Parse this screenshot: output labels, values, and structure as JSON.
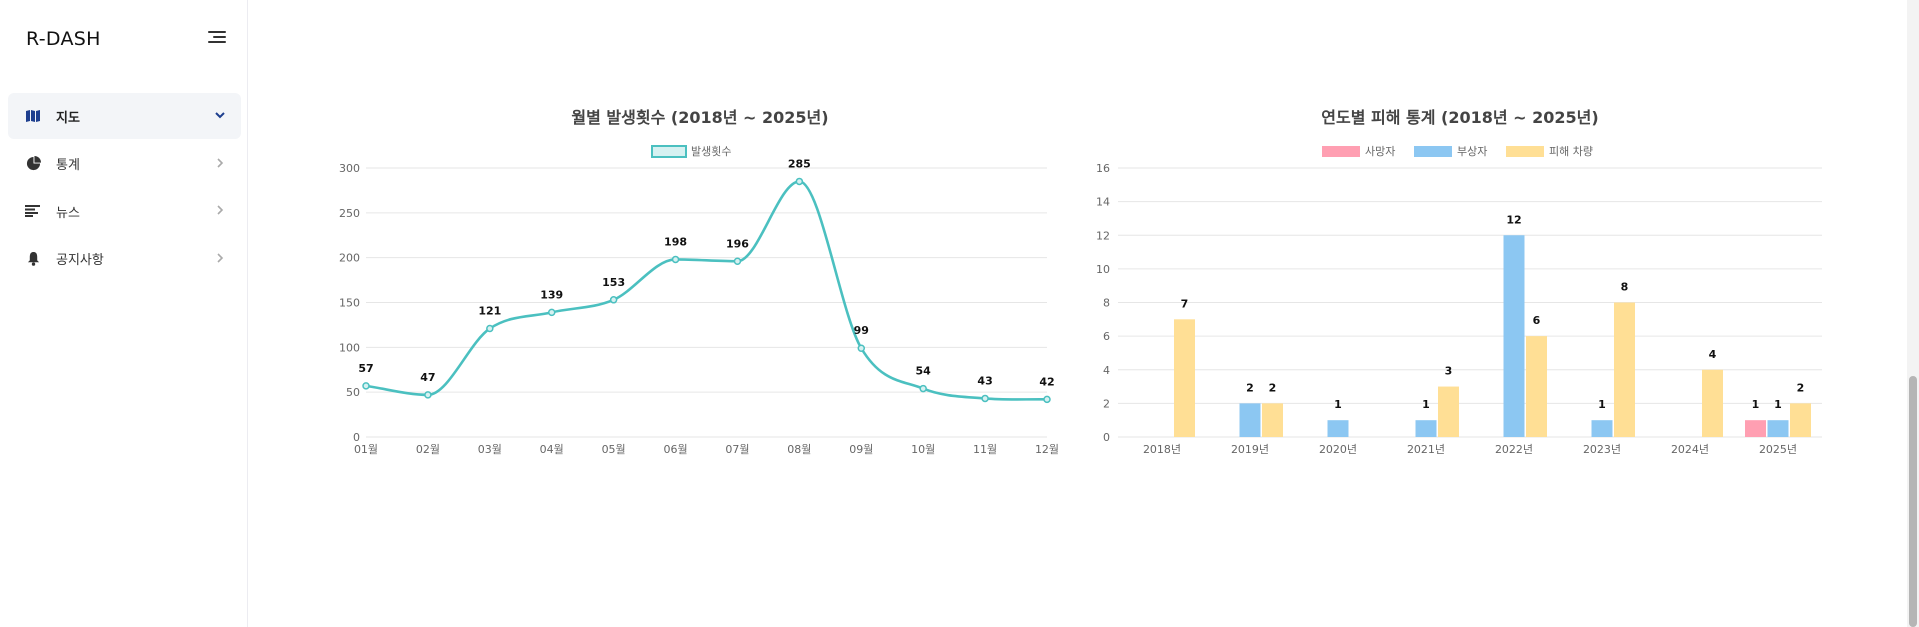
{
  "sidebar": {
    "brand": "R-DASH",
    "items": [
      {
        "label": "지도",
        "icon": "map-icon",
        "active": true
      },
      {
        "label": "통계",
        "icon": "pie-chart-icon",
        "active": false
      },
      {
        "label": "뉴스",
        "icon": "news-icon",
        "active": false
      },
      {
        "label": "공지사항",
        "icon": "bell-icon",
        "active": false
      }
    ]
  },
  "colors": {
    "line": "#4bc0c0",
    "line_fill": "#d6f1f1",
    "deaths": "#ff9fb2",
    "injured": "#8cc7f2",
    "vehicles": "#ffdf95",
    "grid": "#e6e6e6",
    "axis_text": "#666666"
  },
  "chart_data": [
    {
      "type": "line",
      "title": "월별 발생횟수 (2018년 ~ 2025년)",
      "legend_position": "top",
      "categories": [
        "01월",
        "02월",
        "03월",
        "04월",
        "05월",
        "06월",
        "07월",
        "08월",
        "09월",
        "10월",
        "11월",
        "12월"
      ],
      "series": [
        {
          "name": "발생횟수",
          "values": [
            57,
            47,
            121,
            139,
            153,
            198,
            196,
            285,
            99,
            54,
            43,
            42
          ]
        }
      ],
      "ylim": [
        0,
        300
      ],
      "yticks": [
        0,
        50,
        100,
        150,
        200,
        250,
        300
      ],
      "grid": true,
      "data_labels": true
    },
    {
      "type": "bar",
      "title": "연도별 피해 통계 (2018년 ~ 2025년)",
      "legend_position": "top",
      "categories": [
        "2018년",
        "2019년",
        "2020년",
        "2021년",
        "2022년",
        "2023년",
        "2024년",
        "2025년"
      ],
      "series": [
        {
          "name": "사망자",
          "values": [
            0,
            0,
            0,
            0,
            0,
            0,
            0,
            1
          ]
        },
        {
          "name": "부상자",
          "values": [
            0,
            2,
            1,
            1,
            12,
            1,
            0,
            1
          ]
        },
        {
          "name": "피해 차량",
          "values": [
            7,
            2,
            0,
            3,
            6,
            8,
            4,
            2
          ]
        }
      ],
      "ylim": [
        0,
        16
      ],
      "yticks": [
        0,
        2,
        4,
        6,
        8,
        10,
        12,
        14,
        16
      ],
      "grid": true,
      "data_labels": true
    }
  ]
}
